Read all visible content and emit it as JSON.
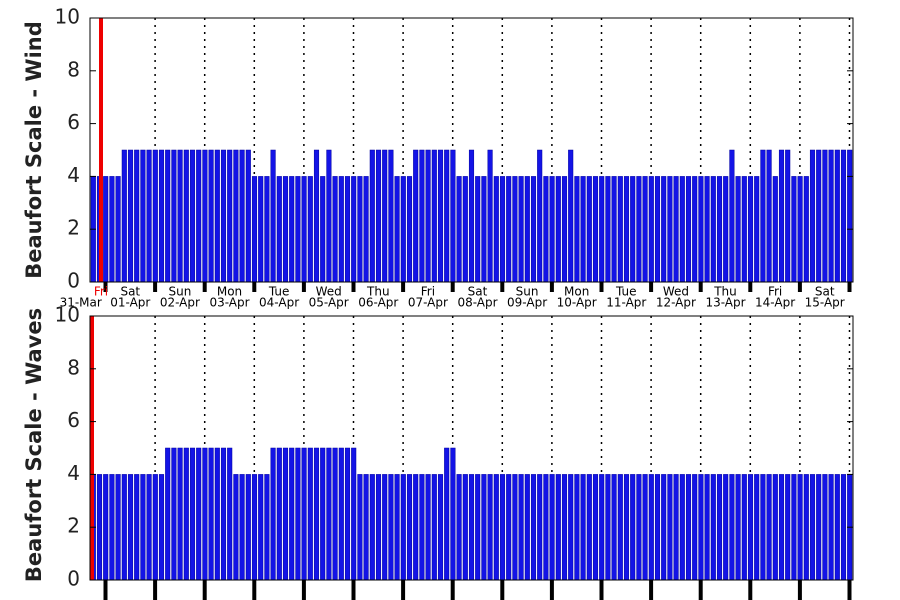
{
  "chart_data": [
    {
      "type": "bar",
      "ylabel": "Beaufort Scale - Wind",
      "color": "#1414e6",
      "ylim": [
        0,
        10
      ],
      "yticks": [
        0,
        2,
        4,
        6,
        8,
        10
      ],
      "x_day_labels": [
        "Fri",
        "Sat",
        "Sun",
        "Mon",
        "Tue",
        "Wed",
        "Thu",
        "Fri",
        "Sat",
        "Sun",
        "Mon",
        "Tue",
        "Wed",
        "Thu",
        "Fri",
        "Sat"
      ],
      "x_date_labels": [
        "31-Mar",
        "01-Apr",
        "02-Apr",
        "03-Apr",
        "04-Apr",
        "05-Apr",
        "06-Apr",
        "07-Apr",
        "08-Apr",
        "09-Apr",
        "10-Apr",
        "11-Apr",
        "12-Apr",
        "13-Apr",
        "14-Apr",
        "15-Apr"
      ],
      "values": [
        4,
        4,
        4,
        4,
        4,
        5,
        5,
        5,
        5,
        5,
        5,
        5,
        5,
        5,
        5,
        5,
        5,
        5,
        5,
        5,
        5,
        5,
        5,
        5,
        5,
        5,
        4,
        4,
        4,
        5,
        4,
        4,
        4,
        4,
        4,
        4,
        5,
        4,
        5,
        4,
        4,
        4,
        4,
        4,
        4,
        5,
        5,
        5,
        5,
        4,
        4,
        4,
        5,
        5,
        5,
        5,
        5,
        5,
        5,
        4,
        4,
        5,
        4,
        4,
        5,
        4,
        4,
        4,
        4,
        4,
        4,
        4,
        5,
        4,
        4,
        4,
        4,
        5,
        4,
        4,
        4,
        4,
        4,
        4,
        4,
        4,
        4,
        4,
        4,
        4,
        4,
        4,
        4,
        4,
        4,
        4,
        4,
        4,
        4,
        4,
        4,
        4,
        4,
        5,
        4,
        4,
        4,
        4,
        5,
        5,
        4,
        5,
        5,
        4,
        4,
        4,
        5,
        5,
        5,
        5,
        5,
        5,
        5
      ]
    },
    {
      "type": "bar",
      "ylabel": "Beaufort Scale - Waves",
      "color": "#1414e6",
      "ylim": [
        0,
        10
      ],
      "yticks": [
        0,
        2,
        4,
        6,
        8,
        10
      ],
      "values": [
        4,
        4,
        4,
        4,
        4,
        4,
        4,
        4,
        4,
        4,
        4,
        4,
        5,
        5,
        5,
        5,
        5,
        5,
        5,
        5,
        5,
        5,
        5,
        4,
        4,
        4,
        4,
        4,
        4,
        5,
        5,
        5,
        5,
        5,
        5,
        5,
        5,
        5,
        5,
        5,
        5,
        5,
        5,
        4,
        4,
        4,
        4,
        4,
        4,
        4,
        4,
        4,
        4,
        4,
        4,
        4,
        4,
        5,
        5,
        4,
        4,
        4,
        4,
        4,
        4,
        4,
        4,
        4,
        4,
        4,
        4,
        4,
        4,
        4,
        4,
        4,
        4,
        4,
        4,
        4,
        4,
        4,
        4,
        4,
        4,
        4,
        4,
        4,
        4,
        4,
        4,
        4,
        4,
        4,
        4,
        4,
        4,
        4,
        4,
        4,
        4,
        4,
        4,
        4,
        4,
        4,
        4,
        4,
        4,
        4,
        4,
        4,
        4,
        4,
        4,
        4,
        4,
        4,
        4,
        4,
        4,
        4,
        4
      ]
    }
  ]
}
